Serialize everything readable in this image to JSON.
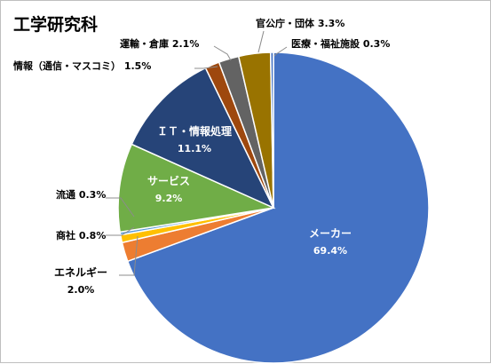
{
  "chart_data": {
    "type": "pie",
    "title": "工学研究科",
    "slices": [
      {
        "name": "メーカー",
        "value": 69.4,
        "display": "69.4%",
        "color": "#4472C4"
      },
      {
        "name": "エネルギー",
        "value": 2.0,
        "display": "2.0%",
        "color": "#ED7D31"
      },
      {
        "name": "商社",
        "value": 0.8,
        "display": "0.8%",
        "color": "#FFC000"
      },
      {
        "name": "流通",
        "value": 0.3,
        "display": "0.3%",
        "color": "#5B9BD5"
      },
      {
        "name": "サービス",
        "value": 9.2,
        "display": "9.2%",
        "color": "#70AD47"
      },
      {
        "name": "ＩＴ・情報処理",
        "value": 11.1,
        "display": "11.1%",
        "color": "#264478"
      },
      {
        "name": "情報（通信・マスコミ）",
        "value": 1.5,
        "display": "1.5%",
        "color": "#9E480E"
      },
      {
        "name": "運輸・倉庫",
        "value": 2.1,
        "display": "2.1%",
        "color": "#636363"
      },
      {
        "name": "官公庁・団体",
        "value": 3.3,
        "display": "3.3%",
        "color": "#997300"
      },
      {
        "name": "医療・福祉施設",
        "value": 0.3,
        "display": "0.3%",
        "color": "#4472C4"
      }
    ],
    "legend": "none"
  }
}
